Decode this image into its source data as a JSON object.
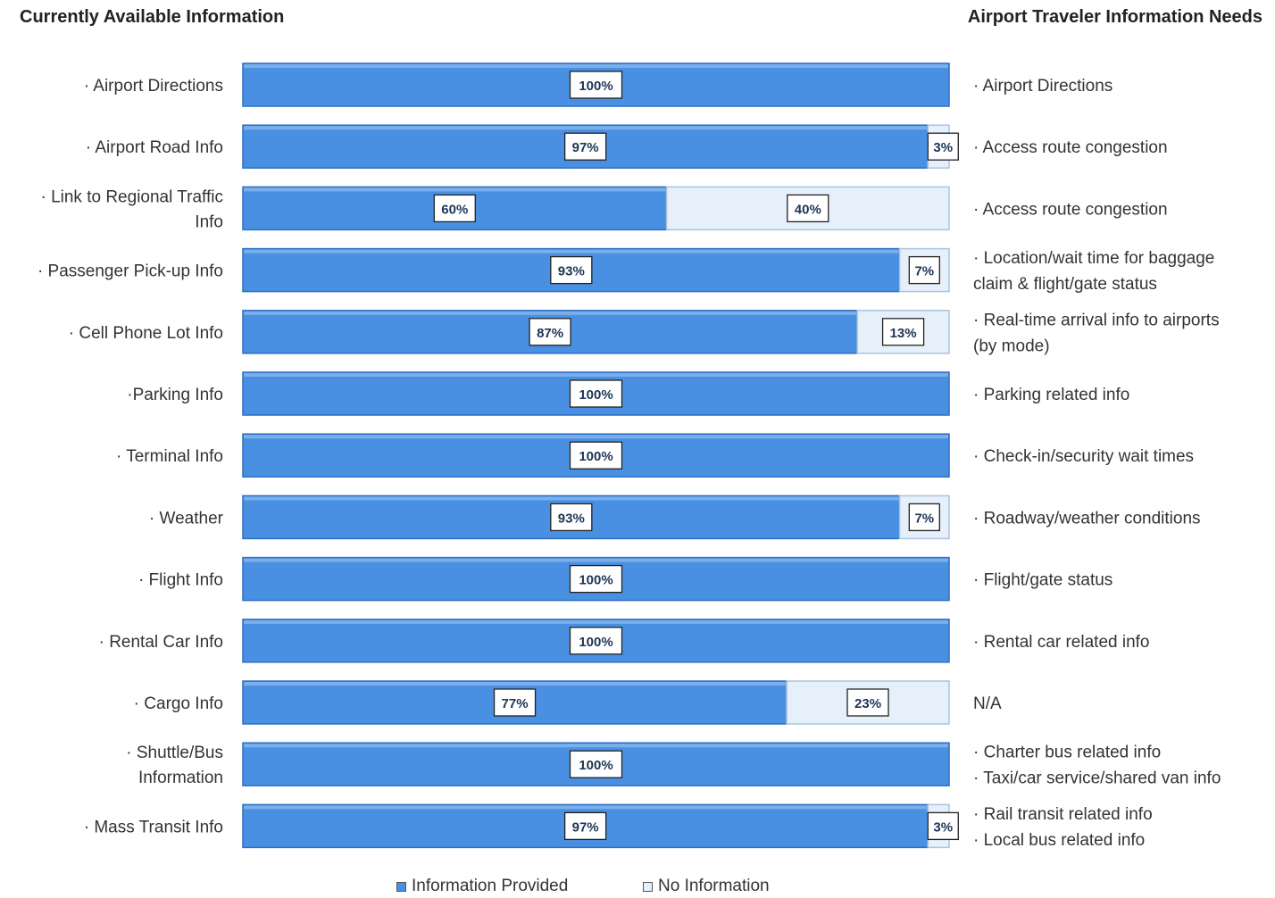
{
  "headers": {
    "left": "Currently Available Information",
    "right": "Airport Traveler Information Needs"
  },
  "colors": {
    "provided": "#4a90e2",
    "provided_edge": "#2c6fc4",
    "no_info": "#e6f0fa",
    "no_info_edge": "#aac4e0"
  },
  "chart_data": {
    "type": "bar",
    "orientation": "horizontal",
    "stacked": true,
    "categories": [
      "· Airport Directions",
      "· Airport Road Info",
      "· Link to Regional Traffic Info",
      "· Passenger Pick-up Info",
      "· Cell Phone Lot Info",
      "·Parking Info",
      "· Terminal Info",
      "· Weather",
      "· Flight Info",
      "· Rental Car Info",
      "· Cargo Info",
      "· Shuttle/Bus Information",
      "· Mass Transit Info"
    ],
    "needs": [
      [
        "· Airport Directions"
      ],
      [
        "· Access route congestion"
      ],
      [
        "· Access route congestion"
      ],
      [
        "· Location/wait time for baggage",
        "claim & flight/gate status"
      ],
      [
        "· Real-time arrival info to airports",
        "(by mode)"
      ],
      [
        "· Parking related info"
      ],
      [
        "· Check-in/security wait times"
      ],
      [
        "· Roadway/weather conditions"
      ],
      [
        "· Flight/gate status"
      ],
      [
        "· Rental car related info"
      ],
      [
        "N/A"
      ],
      [
        "· Charter bus related info",
        "· Taxi/car service/shared van info"
      ],
      [
        "· Rail transit related info",
        "· Local bus related info"
      ]
    ],
    "series": [
      {
        "name": "Information Provided",
        "values": [
          100,
          97,
          60,
          93,
          87,
          100,
          100,
          93,
          100,
          100,
          77,
          100,
          97
        ]
      },
      {
        "name": "No Information",
        "values": [
          0,
          3,
          40,
          7,
          13,
          0,
          0,
          7,
          0,
          0,
          23,
          0,
          3
        ]
      }
    ],
    "xlim": [
      0,
      100
    ],
    "value_suffix": "%",
    "grid": false,
    "legend_position": "bottom"
  }
}
